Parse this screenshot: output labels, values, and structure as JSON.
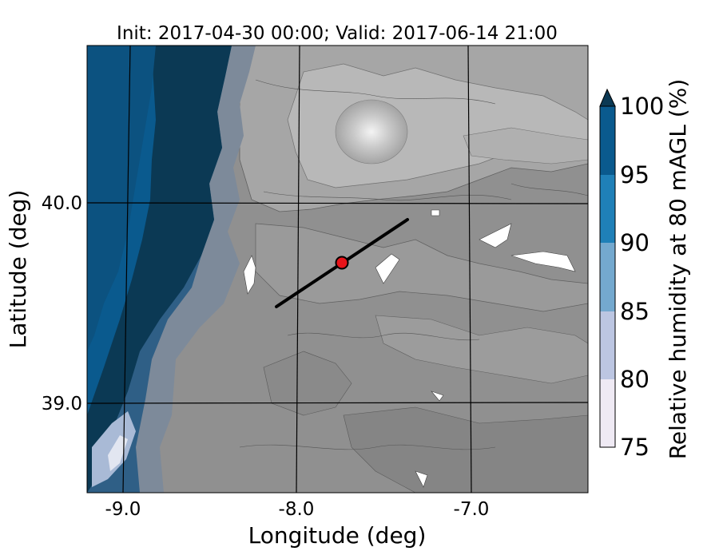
{
  "title": "Init: 2017-04-30 00:00; Valid: 2017-06-14 21:00",
  "map": {
    "xlabel": "Longitude (deg)",
    "ylabel": "Latitude (deg)",
    "lon_ticks": [
      {
        "value": -9.0,
        "label": "-9.0"
      },
      {
        "value": -8.0,
        "label": "-8.0"
      },
      {
        "value": -7.0,
        "label": "-7.0"
      }
    ],
    "lat_ticks": [
      {
        "value": 40.0,
        "label": "40.0"
      },
      {
        "value": 39.0,
        "label": "39.0"
      }
    ],
    "cross_section_line": {
      "start": {
        "lon": -8.1,
        "lat": 39.5
      },
      "end": {
        "lon": -7.35,
        "lat": 39.95
      }
    },
    "marker": {
      "lon": -7.75,
      "lat": 39.7,
      "color": "#e8141a"
    }
  },
  "colorbar": {
    "label": "Relative humidity at 80 mAGL (%)",
    "ticks": [
      "75",
      "80",
      "85",
      "90",
      "95",
      "100"
    ],
    "levels": [
      75,
      80,
      85,
      90,
      95,
      100
    ],
    "colors": [
      "#efeaf4",
      "#bcc6e2",
      "#74a9cf",
      "#1f80b8",
      "#0a5a8e"
    ],
    "extend_color": "#0b3954"
  },
  "colors": {
    "ocean": "#0b3954",
    "deep_blue": "#0a5a8e",
    "mid_blue": "#1f80b8",
    "terrain_base": "#909090"
  }
}
